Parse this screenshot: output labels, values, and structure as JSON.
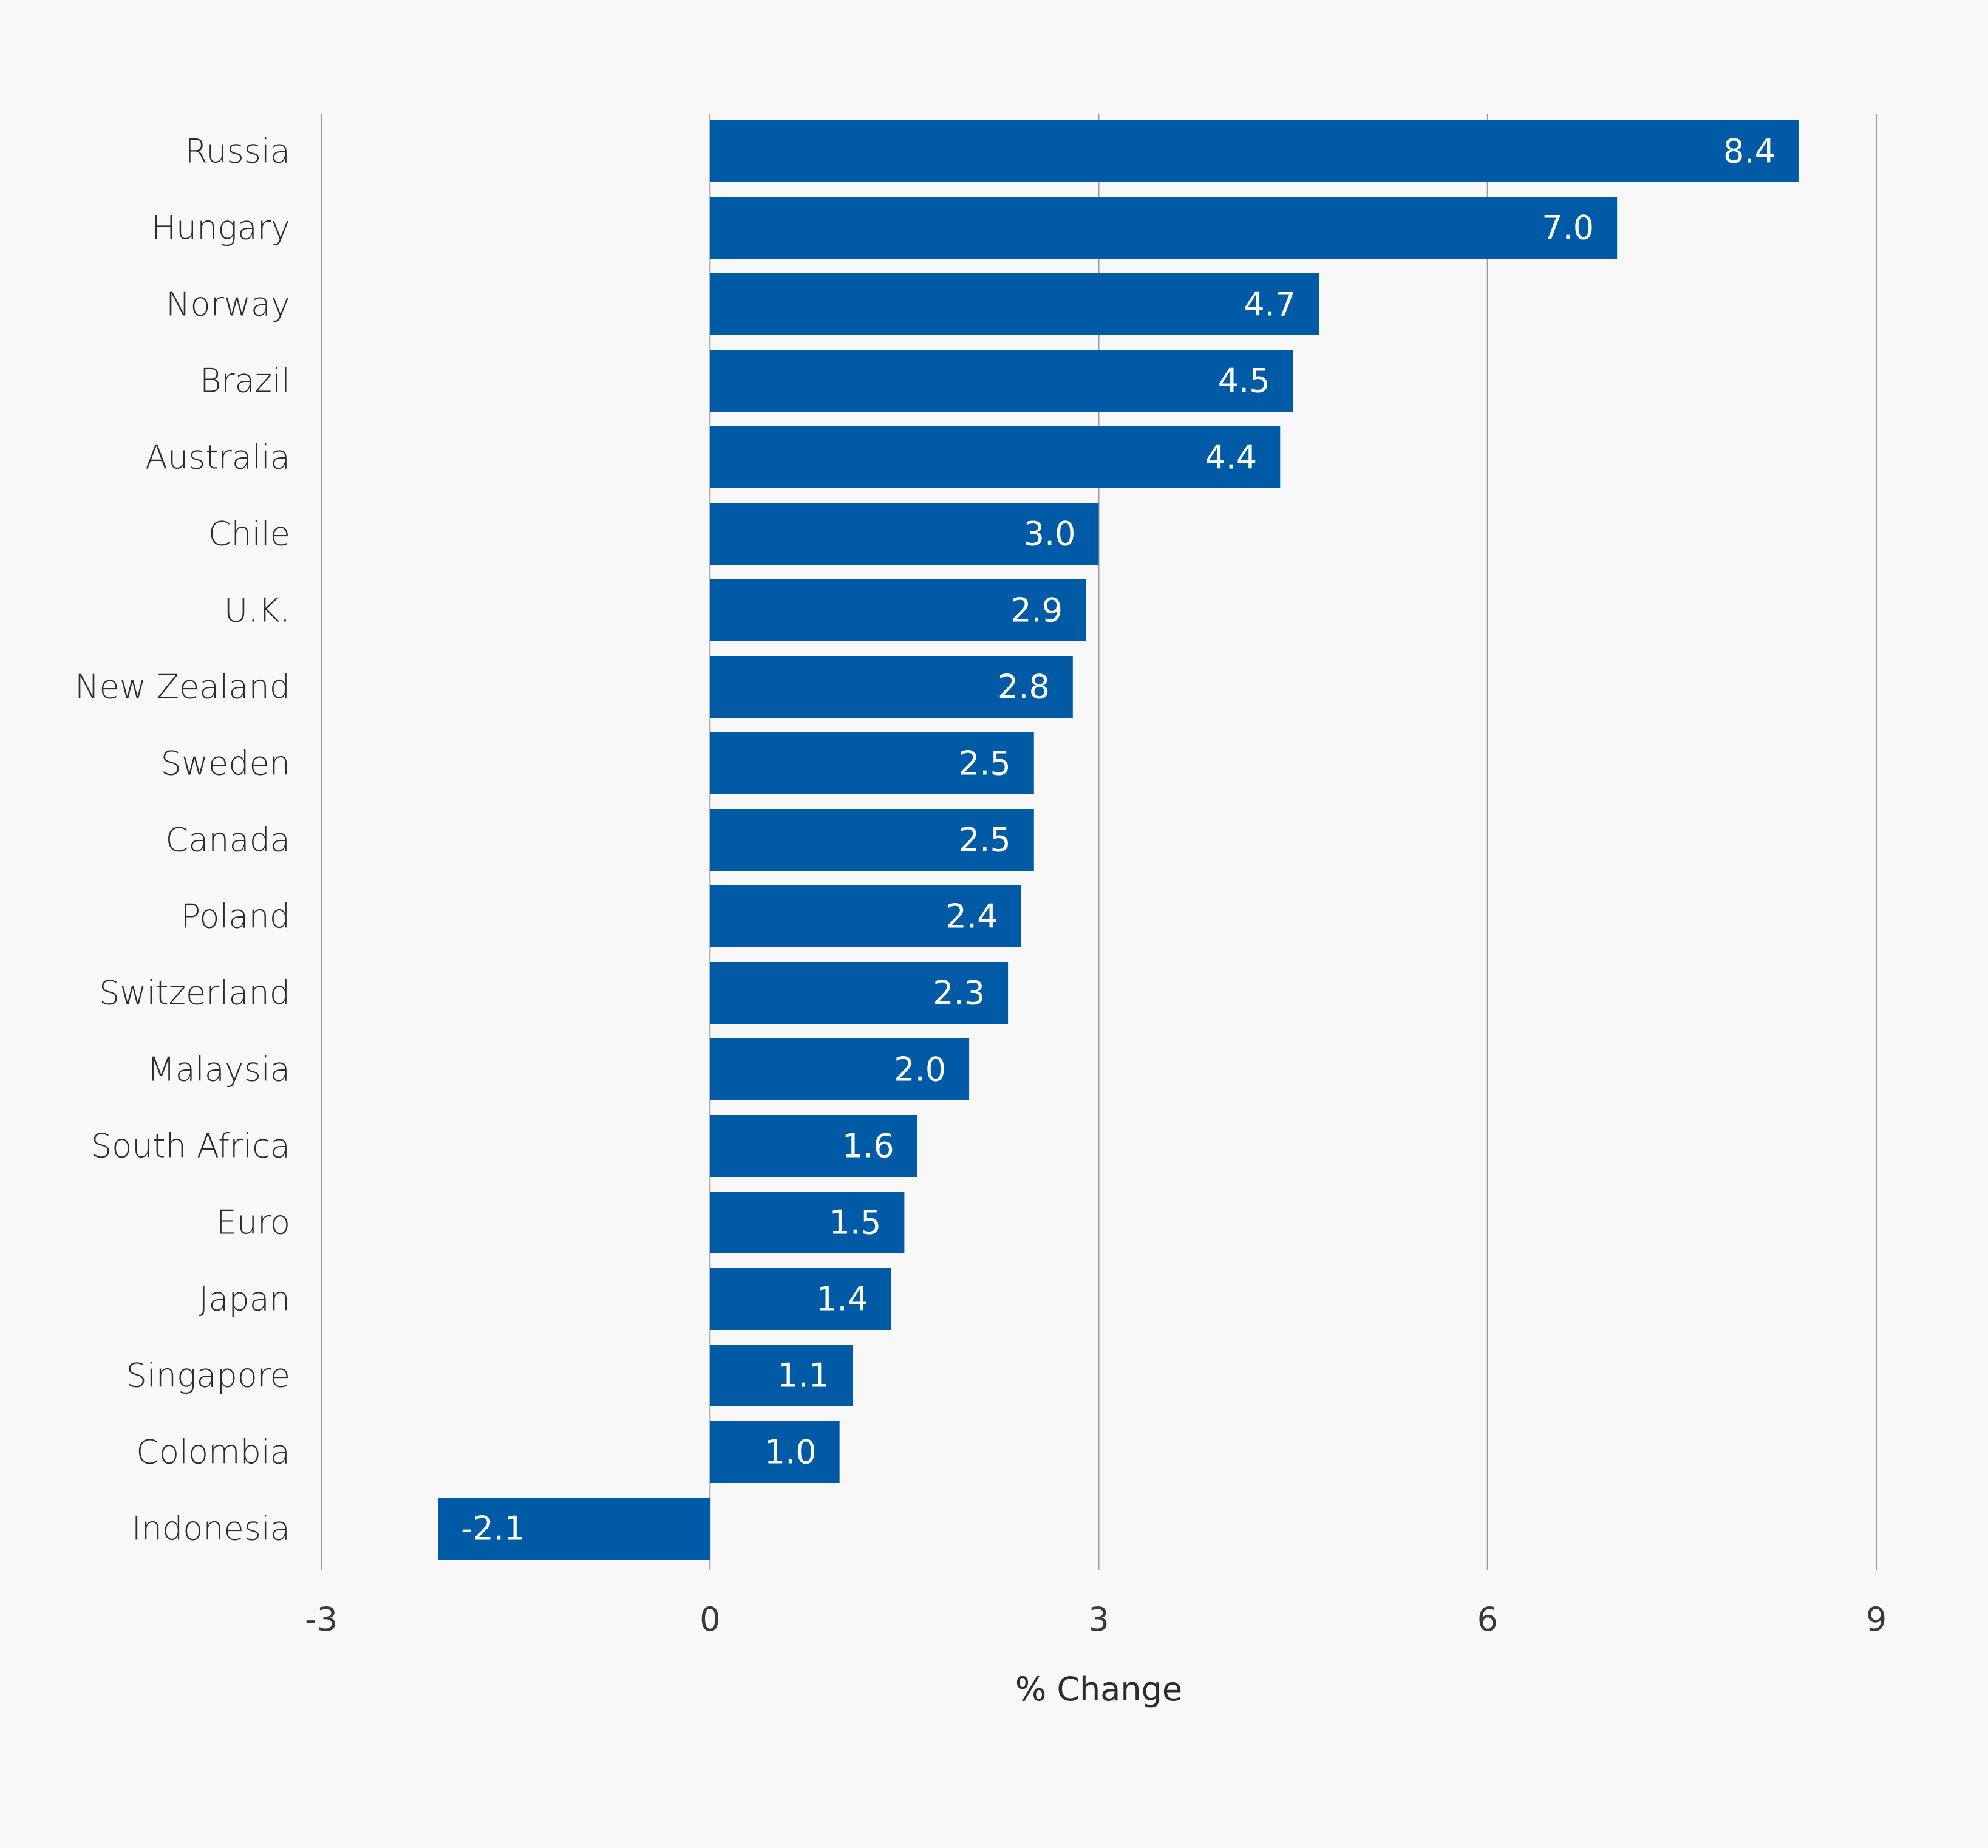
{
  "chart_data": {
    "type": "bar",
    "orientation": "horizontal",
    "categories": [
      "Russia",
      "Hungary",
      "Norway",
      "Brazil",
      "Australia",
      "Chile",
      "U.K.",
      "New Zealand",
      "Sweden",
      "Canada",
      "Poland",
      "Switzerland",
      "Malaysia",
      "South Africa",
      "Euro",
      "Japan",
      "Singapore",
      "Colombia",
      "Indonesia"
    ],
    "values": [
      8.4,
      7.0,
      4.7,
      4.5,
      4.4,
      3.0,
      2.9,
      2.8,
      2.5,
      2.5,
      2.4,
      2.3,
      2.0,
      1.6,
      1.5,
      1.4,
      1.1,
      1.0,
      -2.1
    ],
    "value_labels": [
      "8.4",
      "7.0",
      "4.7",
      "4.5",
      "4.4",
      "3.0",
      "2.9",
      "2.8",
      "2.5",
      "2.5",
      "2.4",
      "2.3",
      "2.0",
      "1.6",
      "1.5",
      "1.4",
      "1.1",
      "1.0",
      "-2.1"
    ],
    "xlabel": "% Change",
    "ylabel": "",
    "title": "",
    "xlim": [
      -3,
      9
    ],
    "xticks": [
      -3,
      0,
      3,
      6,
      9
    ],
    "xtick_labels": [
      "-3",
      "0",
      "3",
      "6",
      "9"
    ],
    "grid": "vertical",
    "bar_color": "#005aa5",
    "grid_color": "#9a9a9a",
    "value_label_color": "#ffffff"
  }
}
